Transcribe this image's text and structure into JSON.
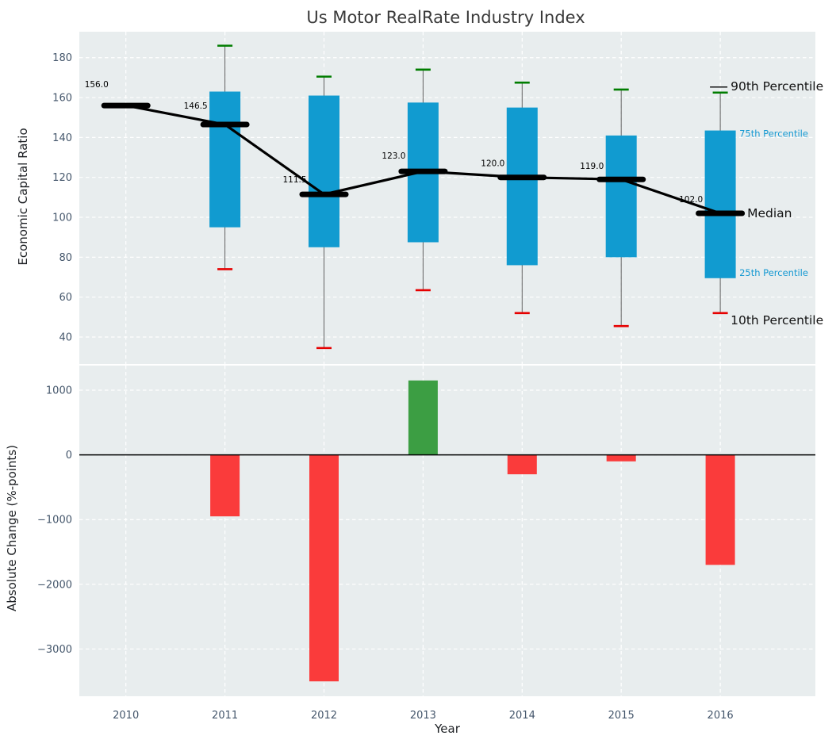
{
  "title": "Us Motor RealRate Industry Index",
  "x_axis": {
    "label": "Year",
    "tick_labels": [
      "2010",
      "2011",
      "2012",
      "2013",
      "2014",
      "2015",
      "2016"
    ]
  },
  "chart_data": {
    "type": "combo",
    "panels": [
      {
        "type": "percentile-boxplot-with-median-line",
        "ylabel": "Economic Capital Ratio",
        "ylim": [
          26.5,
          193
        ],
        "yticks": [
          40,
          60,
          80,
          100,
          120,
          140,
          160,
          180
        ],
        "ytick_labels": [
          "40",
          "60",
          "80",
          "100",
          "120",
          "140",
          "160",
          "180"
        ],
        "grid": true,
        "x": [
          2010,
          2011,
          2012,
          2013,
          2014,
          2015,
          2016
        ],
        "series": [
          {
            "name": "Median",
            "values": [
              156.0,
              146.5,
              111.5,
              123.0,
              120.0,
              119.0,
              102.0
            ]
          },
          {
            "name": "90th Percentile",
            "values": [
              null,
              186.0,
              170.5,
              174.0,
              167.5,
              164.0,
              162.5
            ]
          },
          {
            "name": "75th Percentile",
            "values": [
              null,
              163.0,
              161.0,
              157.5,
              155.0,
              141.0,
              143.5
            ]
          },
          {
            "name": "25th Percentile",
            "values": [
              null,
              95.0,
              85.0,
              87.5,
              76.0,
              80.0,
              69.5
            ]
          },
          {
            "name": "10th Percentile",
            "values": [
              null,
              74.0,
              34.5,
              63.5,
              52.0,
              45.5,
              52.0
            ]
          }
        ],
        "point_labels": [
          "156.0",
          "146.5",
          "111.5",
          "123.0",
          "120.0",
          "119.0",
          "102.0"
        ],
        "annotations": [
          {
            "text": "90th Percentile",
            "style": "large-black"
          },
          {
            "text": "75th Percentile",
            "style": "small-blue"
          },
          {
            "text": "Median",
            "style": "large-black"
          },
          {
            "text": "25th Percentile",
            "style": "small-blue"
          },
          {
            "text": "10th Percentile",
            "style": "large-black"
          }
        ]
      },
      {
        "type": "bar",
        "ylabel": "Absolute Change (%-points)",
        "ylim": [
          -3730,
          1380
        ],
        "yticks": [
          1000,
          0,
          -1000,
          -2000,
          -3000
        ],
        "ytick_labels": [
          "1000",
          "0",
          "−1000",
          "−2000",
          "−3000"
        ],
        "grid": true,
        "x": [
          2010,
          2011,
          2012,
          2013,
          2014,
          2015,
          2016
        ],
        "values": [
          null,
          -950,
          -3500,
          1150,
          -300,
          -100,
          -1700
        ]
      }
    ]
  },
  "colors": {
    "box_fill": "#119bd0",
    "whisker": "#606060",
    "cap_high": "#007d00",
    "cap_low": "#e60000",
    "median": "#000000",
    "bar_positive": "#3c9e43",
    "bar_negative": "#fa3b3b",
    "panel_bg": "#e8edee",
    "grid": "#ffffff",
    "tick_text": "#44566b",
    "label_text": "#1c1f23",
    "title_text": "#3a3a3a",
    "annotation_blue": "#1599d2",
    "annotation_black": "#111111",
    "zero_line": "#000000"
  }
}
